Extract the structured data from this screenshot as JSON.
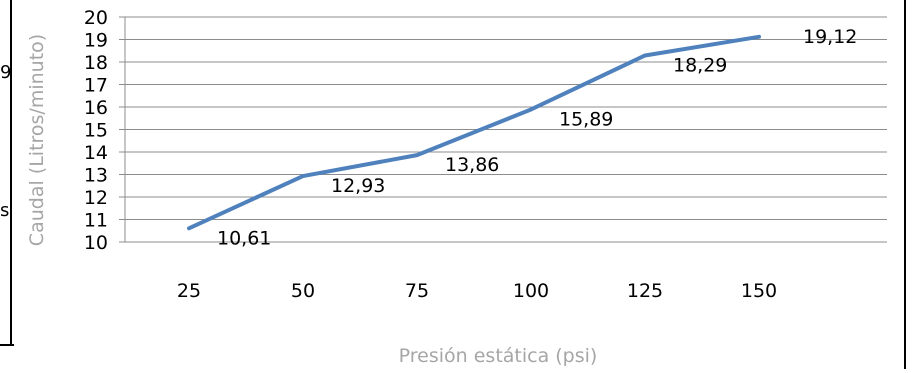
{
  "chart_data": {
    "type": "line",
    "x": [
      25,
      50,
      75,
      100,
      125,
      150
    ],
    "categories": [
      "25",
      "50",
      "75",
      "100",
      "125",
      "150"
    ],
    "values": [
      10.61,
      12.93,
      13.86,
      15.89,
      18.29,
      19.12
    ],
    "data_labels": [
      "10,61",
      "12,93",
      "13,86",
      "15,89",
      "18,29",
      "19,12"
    ],
    "ylabel": "Caudal (Litros/minuto)",
    "xlabel": "Presión estática (psi)",
    "ylim": [
      10,
      20
    ],
    "y_ticks": [
      "10",
      "11",
      "12",
      "13",
      "14",
      "15",
      "16",
      "17",
      "18",
      "19",
      "20"
    ],
    "grid": true,
    "legend": "none",
    "line_color": "#4f81bd",
    "grid_color": "#8c8c8c"
  },
  "left_fragments": [
    "9",
    "s"
  ]
}
